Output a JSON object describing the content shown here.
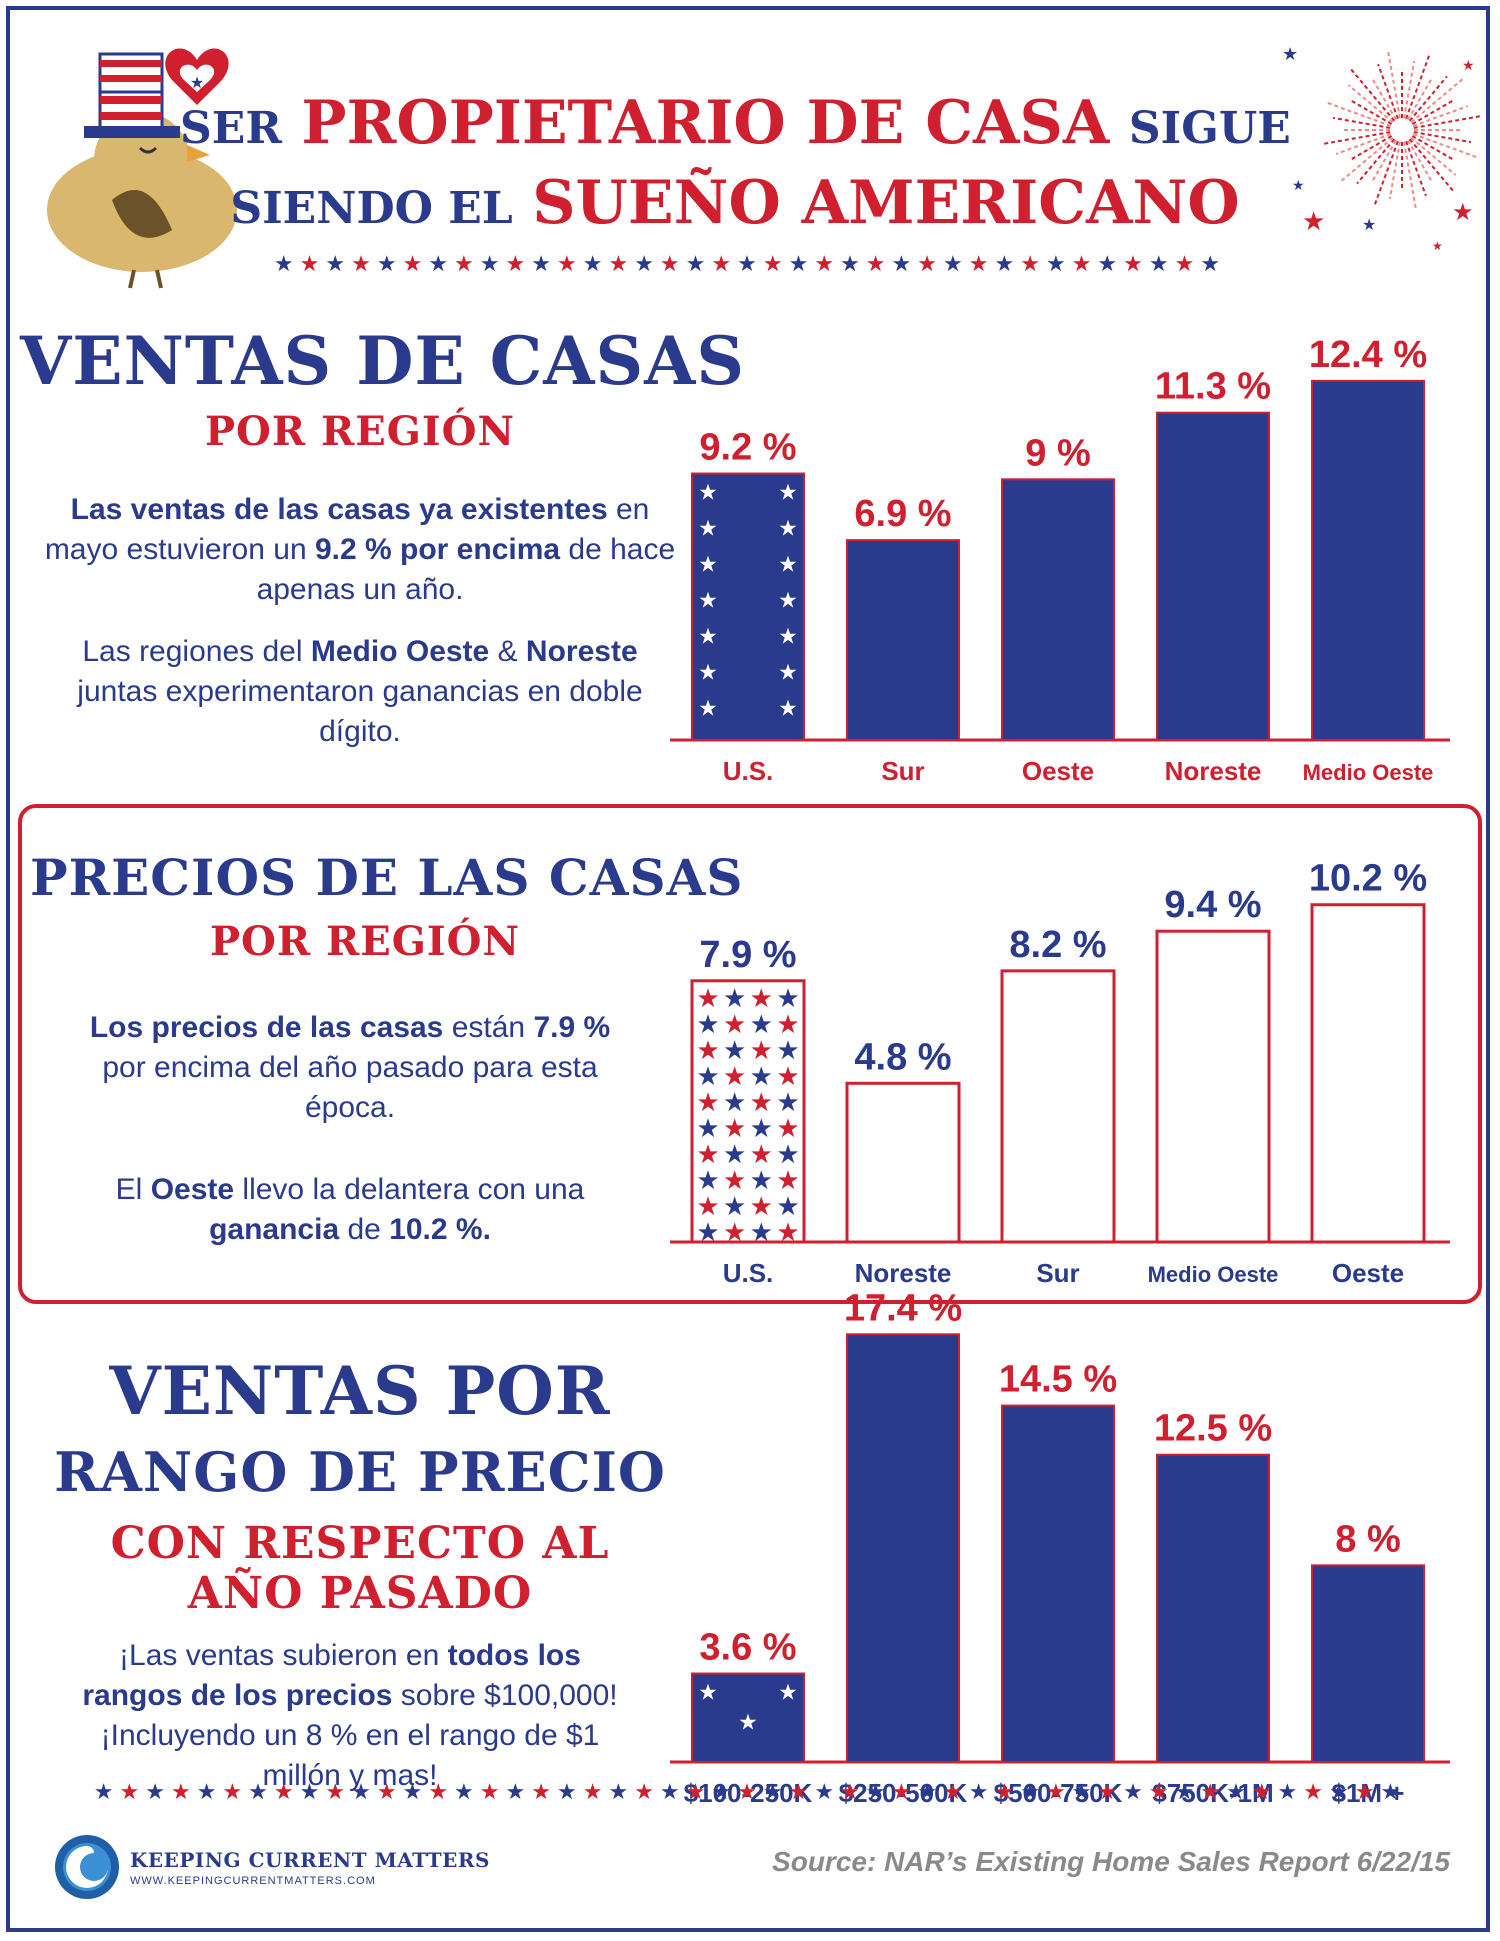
{
  "header": {
    "line1_a": "SER",
    "line1_b": "PROPIETARIO DE CASA",
    "line1_c": "SIGUE",
    "line2_a": "SIENDO EL",
    "line2_b": "SUEÑO AMERICANO"
  },
  "section1": {
    "title": "VENTAS DE CASAS",
    "subtitle": "POR REGIÓN",
    "p1_b1": "Las ventas de las casas ya existentes",
    "p1_t1": " en mayo estuvieron un ",
    "p1_b2": "9.2 % por encima",
    "p1_t2": " de hace apenas un año.",
    "p2_t1": "Las regiones del ",
    "p2_b1": "Medio Oeste",
    "p2_t2": " & ",
    "p2_b2": "Noreste",
    "p2_t3": " juntas experimentaron ganancias en doble dígito."
  },
  "section2": {
    "title": "PRECIOS DE LAS CASAS",
    "subtitle": "POR REGIÓN",
    "p1_b1": "Los precios de las casas",
    "p1_t1": " están ",
    "p1_b2": "7.9 %",
    "p1_t2": " por encima del año pasado para esta época.",
    "p2_t1": "El ",
    "p2_b1": "Oeste",
    "p2_t2": " llevo la delantera con una ",
    "p2_b2": "ganancia",
    "p2_t3": " de ",
    "p2_b3": "10.2 %."
  },
  "section3": {
    "title1": "VENTAS POR",
    "title2": "RANGO DE PRECIO",
    "subtitle1": "CON RESPECTO AL",
    "subtitle2": "AÑO PASADO",
    "p1_t1": "¡Las ventas subieron en ",
    "p1_b1": "todos los rangos de los precios",
    "p1_t2": " sobre $100,000! ¡Incluyendo un 8 % en el rango de $1 millón y mas!"
  },
  "footer": {
    "brand": "KEEPING CURRENT MATTERS",
    "url": "WWW.KEEPINGCURRENTMATTERS.COM",
    "source": "Source: NAR’s Existing Home Sales Report 6/22/15"
  },
  "colors": {
    "blue": "#2a3a8c",
    "red": "#d0202f"
  },
  "chart_data": [
    {
      "type": "bar",
      "categories": [
        "U.S.",
        "Sur",
        "Oeste",
        "Noreste",
        "Medio Oeste"
      ],
      "values": [
        9.2,
        6.9,
        9,
        11.3,
        12.4
      ],
      "labels": [
        "9.2 %",
        "6.9 %",
        "9 %",
        "11.3 %",
        "12.4 %"
      ],
      "ylim": [
        0,
        14.5
      ]
    },
    {
      "type": "bar",
      "categories": [
        "U.S.",
        "Noreste",
        "Sur",
        "Medio Oeste",
        "Oeste"
      ],
      "values": [
        7.9,
        4.8,
        8.2,
        9.4,
        10.2
      ],
      "labels": [
        "7.9 %",
        "4.8 %",
        "8.2 %",
        "9.4 %",
        "10.2 %"
      ],
      "ylim": [
        0,
        12.4
      ]
    },
    {
      "type": "bar",
      "categories": [
        "$100-250K",
        "$250-500K",
        "$500-750K",
        "$750K-1M",
        "$1M +"
      ],
      "values": [
        3.6,
        17.4,
        14.5,
        12.5,
        8
      ],
      "labels": [
        "3.6 %",
        "17.4 %",
        "14.5 %",
        "12.5 %",
        "8 %"
      ],
      "ylim": [
        0,
        17.9
      ]
    }
  ]
}
